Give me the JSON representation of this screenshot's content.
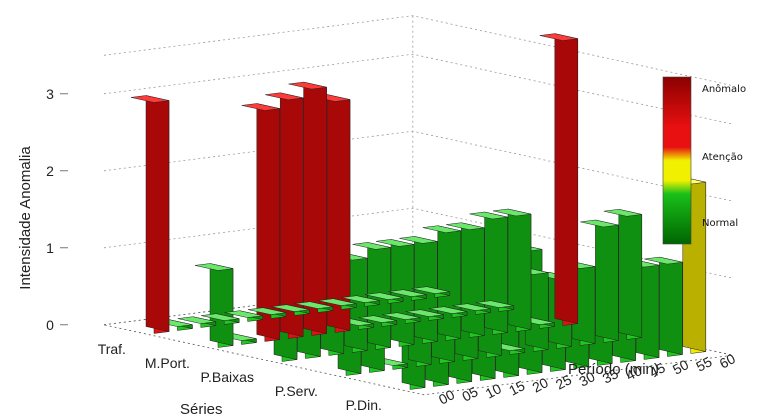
{
  "chart_data": {
    "type": "bar3d",
    "ylabel": "Intensidade Anomalia",
    "xlabel": "Período (min)",
    "zlabel": "Séries",
    "zlim": [
      0,
      3.5
    ],
    "z_ticks": [
      "0",
      "1",
      "2",
      "3"
    ],
    "x_ticks": [
      "00",
      "05",
      "10",
      "15",
      "20",
      "25",
      "30",
      "35",
      "40",
      "45",
      "50",
      "55",
      "60"
    ],
    "series_labels": [
      "Traf.",
      "M.Port.",
      "P.Baixas",
      "P.Serv.",
      "P.Din."
    ],
    "colorbar": {
      "labels": [
        "Anômalo",
        "Atenção",
        "Normal"
      ],
      "colors": [
        "#8b0000",
        "#e81010",
        "#f0f000",
        "#19c019",
        "#006400"
      ]
    },
    "series": [
      {
        "name": "Traf.",
        "values": [
          3.0,
          0.05,
          0.05,
          0.05,
          0.05,
          0.05,
          0.05,
          0.05,
          0.05,
          0.05,
          0.05,
          0.05,
          0.05
        ]
      },
      {
        "name": "M.Port.",
        "values": [
          1.0,
          0.05,
          3.0,
          3.1,
          3.2,
          3.0,
          0.05,
          0.05,
          0.05,
          0.05,
          0.05,
          0.05,
          0.05
        ]
      },
      {
        "name": "P.Baixas",
        "values": [
          1.0,
          1.0,
          1.1,
          1.2,
          1.3,
          1.3,
          1.3,
          1.4,
          1.4,
          1.5,
          1.5,
          0.05,
          3.7
        ]
      },
      {
        "name": "P.Serv.",
        "values": [
          0.9,
          0.8,
          0.05,
          0.9,
          1.0,
          1.2,
          1.2,
          0.05,
          1.0,
          0.9,
          1.0,
          1.5,
          1.6
        ]
      },
      {
        "name": "P.Din.",
        "values": [
          0.9,
          0.9,
          1.0,
          1.0,
          1.0,
          1.6,
          1.0,
          1.1,
          1.2,
          1.2,
          1.2,
          1.2,
          2.2
        ]
      }
    ]
  }
}
